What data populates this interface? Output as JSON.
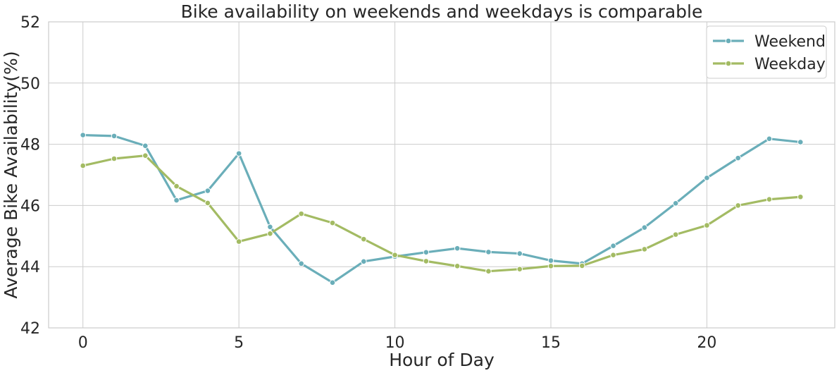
{
  "chart_data": {
    "type": "line",
    "title": "Bike availability on weekends and weekdays is comparable",
    "xlabel": "Hour of Day",
    "ylabel": "Average Bike Availability(%)",
    "xlim": [
      -1.1,
      24.1
    ],
    "ylim": [
      42,
      52
    ],
    "xticks": [
      0,
      5,
      10,
      15,
      20
    ],
    "yticks": [
      42,
      44,
      46,
      48,
      50,
      52
    ],
    "x": [
      0,
      1,
      2,
      3,
      4,
      5,
      6,
      7,
      8,
      9,
      10,
      11,
      12,
      13,
      14,
      15,
      16,
      17,
      18,
      19,
      20,
      21,
      22,
      23
    ],
    "grid": true,
    "legend_position": "top-right",
    "series": [
      {
        "name": "Weekend",
        "color": "#6aaeb9",
        "values": [
          48.3,
          48.27,
          47.95,
          46.17,
          46.48,
          47.7,
          45.3,
          44.1,
          43.48,
          44.17,
          44.33,
          44.47,
          44.6,
          44.48,
          44.43,
          44.2,
          44.1,
          44.68,
          45.28,
          46.07,
          46.9,
          47.55,
          48.18,
          48.07
        ]
      },
      {
        "name": "Weekday",
        "color": "#a3bb63",
        "values": [
          47.3,
          47.53,
          47.63,
          46.63,
          46.08,
          44.82,
          45.08,
          45.73,
          45.43,
          44.9,
          44.38,
          44.18,
          44.02,
          43.85,
          43.92,
          44.02,
          44.03,
          44.38,
          44.57,
          45.05,
          45.35,
          46.0,
          46.2,
          46.28
        ]
      }
    ]
  }
}
